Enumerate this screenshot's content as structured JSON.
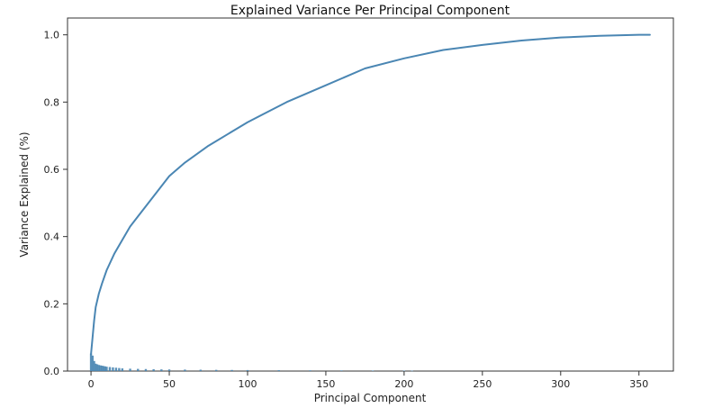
{
  "chart_data": {
    "type": "line",
    "title": "Explained Variance Per Principal Component",
    "xlabel": "Principal Component",
    "ylabel": "Variance Explained (%)",
    "xlim": [
      -15,
      372
    ],
    "ylim": [
      0.0,
      1.05
    ],
    "x_ticks": [
      0,
      50,
      100,
      150,
      200,
      250,
      300,
      350
    ],
    "y_ticks": [
      0.0,
      0.2,
      0.4,
      0.6,
      0.8,
      1.0
    ],
    "y_tick_labels": [
      "0.0",
      "0.2",
      "0.4",
      "0.6",
      "0.8",
      "1.0"
    ],
    "grid": false,
    "colors": {
      "line": "#4a86b3",
      "bars": "#4a86b3",
      "axis": "#333333"
    },
    "series": [
      {
        "type": "line",
        "x": [
          0,
          1,
          2,
          3,
          5,
          7,
          10,
          15,
          20,
          25,
          30,
          40,
          50,
          60,
          75,
          100,
          125,
          150,
          175,
          200,
          225,
          250,
          275,
          300,
          325,
          350,
          357
        ],
        "y": [
          0.05,
          0.1,
          0.15,
          0.19,
          0.23,
          0.26,
          0.3,
          0.35,
          0.39,
          0.43,
          0.46,
          0.52,
          0.58,
          0.62,
          0.67,
          0.74,
          0.8,
          0.85,
          0.9,
          0.93,
          0.955,
          0.97,
          0.983,
          0.992,
          0.997,
          1.0,
          1.0
        ]
      },
      {
        "type": "bar",
        "x": [
          0,
          1,
          2,
          3,
          4,
          5,
          6,
          7,
          8,
          9,
          10,
          12,
          14,
          16,
          18,
          20,
          25,
          30,
          35,
          40,
          45,
          50,
          60,
          70,
          80,
          90,
          100,
          120,
          140,
          160,
          180,
          200,
          205
        ],
        "values": [
          0.052,
          0.046,
          0.03,
          0.022,
          0.02,
          0.018,
          0.017,
          0.016,
          0.015,
          0.014,
          0.013,
          0.012,
          0.011,
          0.01,
          0.009,
          0.008,
          0.007,
          0.0065,
          0.006,
          0.0055,
          0.005,
          0.0048,
          0.0044,
          0.004,
          0.0036,
          0.0033,
          0.003,
          0.0026,
          0.0022,
          0.0019,
          0.0016,
          0.0013,
          0.0012
        ]
      }
    ]
  }
}
